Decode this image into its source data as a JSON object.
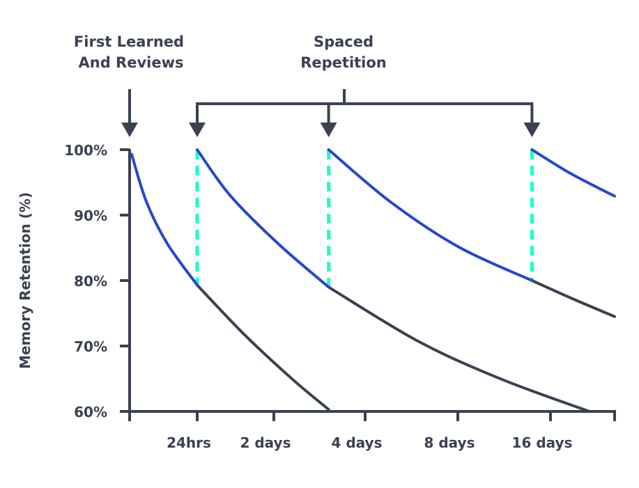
{
  "chart_data": {
    "type": "line",
    "title": "",
    "xlabel": "",
    "ylabel": "Memory Retention (%)",
    "ylim": [
      60,
      100
    ],
    "yticks": [
      "100%",
      "90%",
      "80%",
      "70%",
      "60%"
    ],
    "ytick_values": [
      100,
      90,
      80,
      70,
      60
    ],
    "xtick_days": [
      0,
      1,
      2,
      4,
      8,
      16,
      32
    ],
    "xtick_labels": [
      "",
      "24hrs",
      "2 days",
      "4 days",
      "8 days",
      "16 days",
      ""
    ],
    "grid": false,
    "annotations": {
      "first": [
        "First Learned",
        "And Reviews"
      ],
      "spaced": [
        "Spaced",
        "Repetition"
      ]
    },
    "review_days": [
      1,
      3.2,
      14.4
    ],
    "curves": [
      {
        "retained": [
          [
            0.03,
            99.3
          ],
          [
            0.25,
            92
          ],
          [
            0.56,
            85.6
          ],
          [
            1,
            79.3
          ]
        ],
        "forgotten": [
          [
            1,
            79.3
          ],
          [
            1.61,
            71.8
          ],
          [
            2.41,
            64.9
          ],
          [
            3.2,
            60.3
          ]
        ]
      },
      {
        "retained": [
          [
            1,
            100
          ],
          [
            1.43,
            93
          ],
          [
            2.1,
            85.6
          ],
          [
            3.2,
            79
          ]
        ],
        "forgotten": [
          [
            3.2,
            79
          ],
          [
            6.3,
            70.7
          ],
          [
            11.8,
            64.9
          ],
          [
            25.7,
            60
          ]
        ]
      },
      {
        "retained": [
          [
            3.2,
            100
          ],
          [
            5.1,
            92
          ],
          [
            8.1,
            85.1
          ],
          [
            14.4,
            80
          ]
        ],
        "forgotten": [
          [
            14.4,
            80
          ],
          [
            21.2,
            77.3
          ],
          [
            32,
            74.5
          ]
        ]
      },
      {
        "retained": [
          [
            14.4,
            100
          ],
          [
            21.2,
            96.3
          ],
          [
            32,
            92.9
          ]
        ],
        "forgotten": []
      }
    ],
    "colors": {
      "axis": "#3a4152",
      "retained": "#2348cc",
      "forgotten": "#3a4152",
      "review": "#1affc8"
    }
  }
}
